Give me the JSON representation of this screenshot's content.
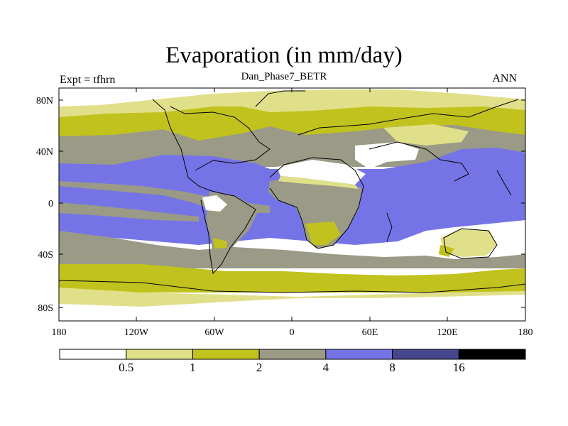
{
  "header": {
    "title": "Evaporation (in mm/day)",
    "subtitle": "Dan_Phase7_BETR",
    "left_label": "Expt = tfhrn",
    "right_label": "ANN"
  },
  "axes": {
    "lat_ticks": [
      "80N",
      "40N",
      "0",
      "40S",
      "80S"
    ],
    "lon_ticks": [
      "180",
      "120W",
      "60W",
      "0",
      "60E",
      "120E",
      "180"
    ]
  },
  "colorbar": {
    "colors": [
      "#ffffff",
      "#e1e08a",
      "#c2c21e",
      "#9a9a87",
      "#7574e6",
      "#46468e",
      "#000000"
    ],
    "labels": [
      "0.5",
      "1",
      "2",
      "4",
      "8",
      "16"
    ]
  }
}
